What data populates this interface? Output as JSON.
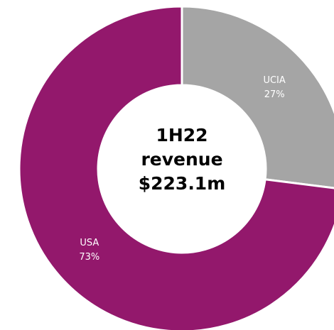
{
  "chart_data": {
    "type": "donut",
    "center_text": [
      "1H22",
      "revenue",
      "$223.1m"
    ],
    "categories": [
      "UCIA",
      "USA"
    ],
    "values": [
      27,
      73
    ],
    "value_labels": [
      "27%",
      "73%"
    ],
    "colors": [
      "#a5a5a5",
      "#93186c"
    ]
  }
}
